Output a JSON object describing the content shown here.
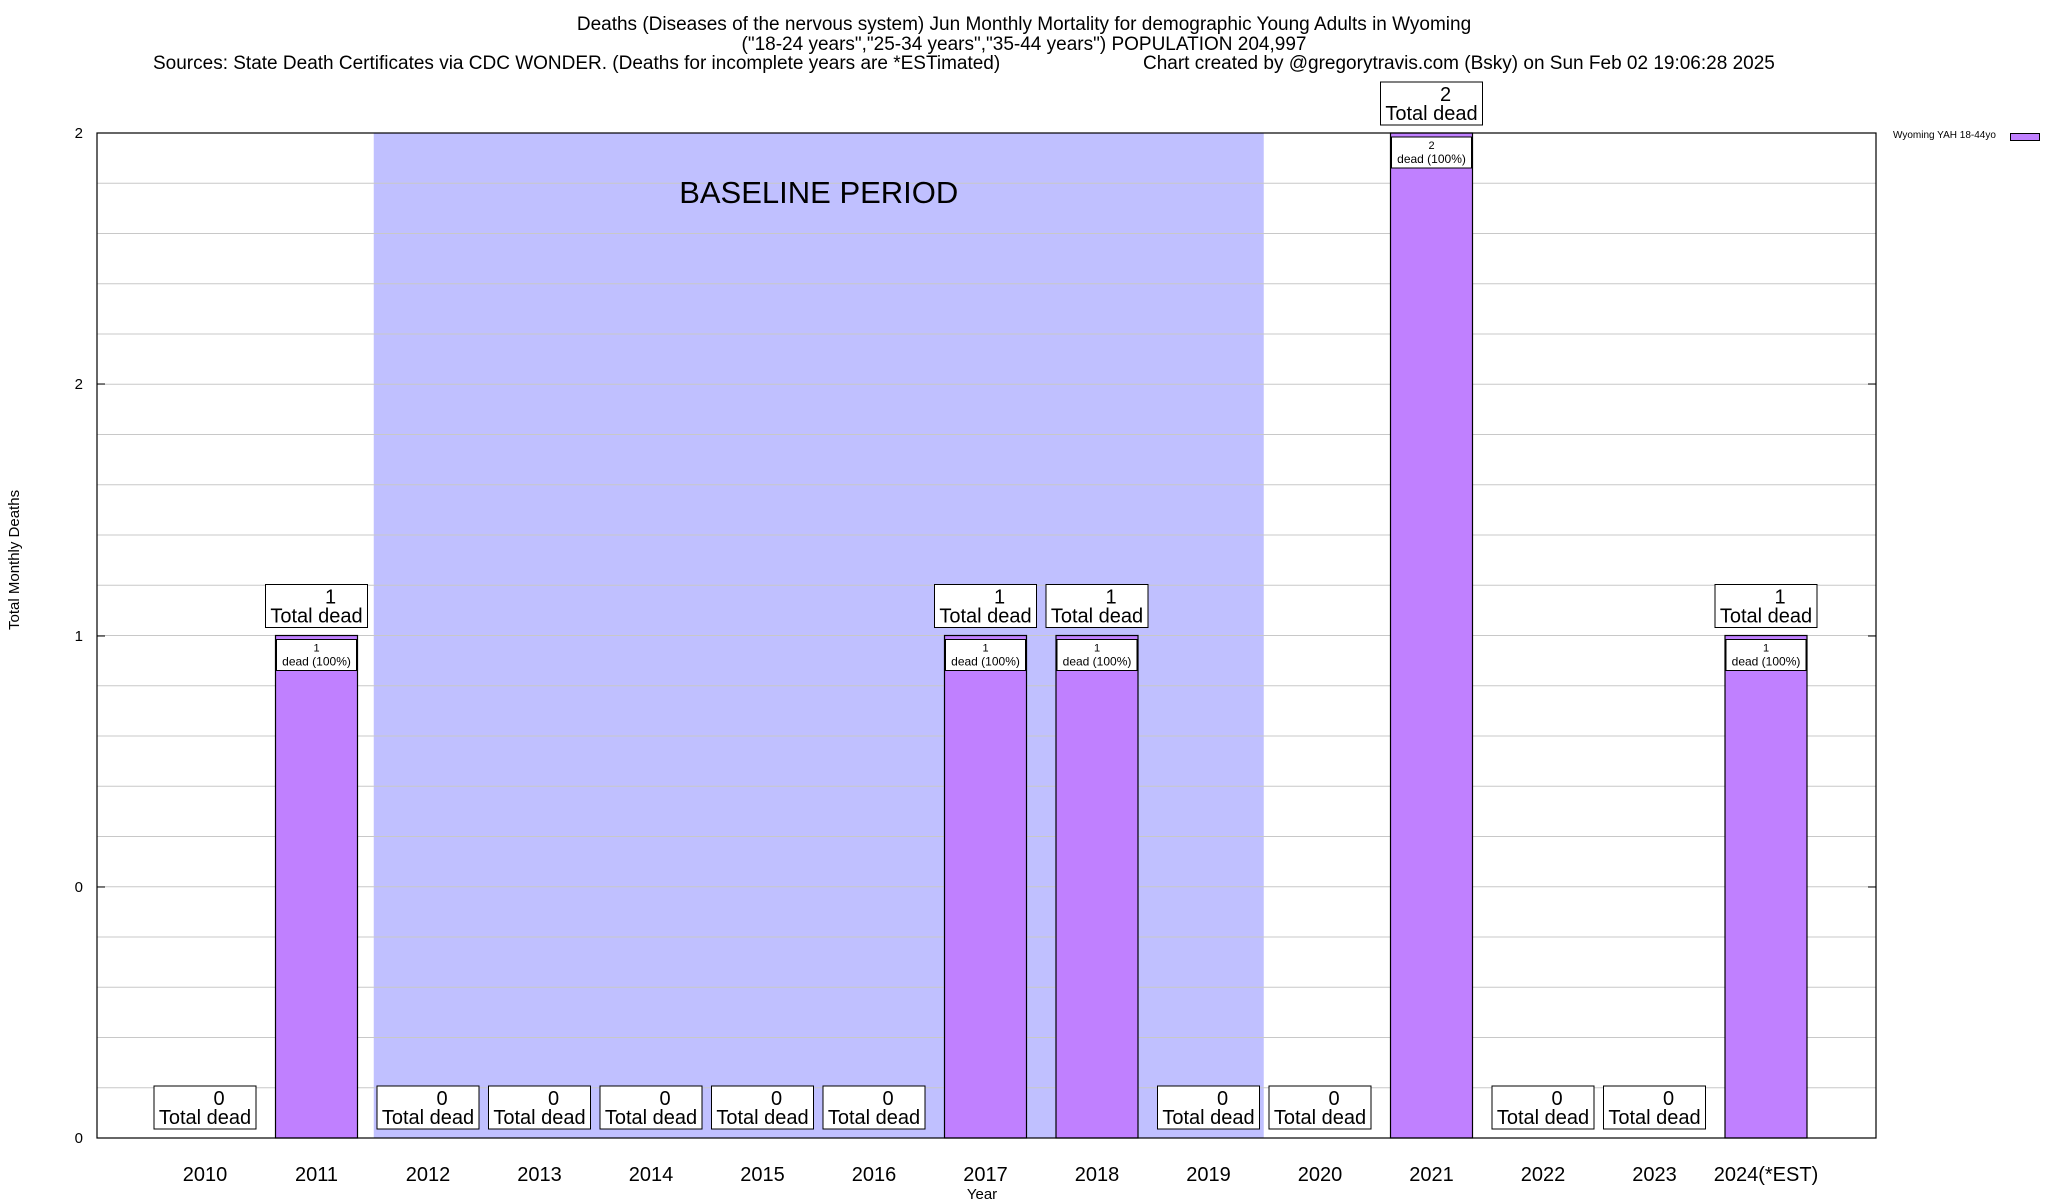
{
  "header": {
    "title_line1": "Deaths (Diseases of the nervous system) Jun Monthly Mortality for demographic Young Adults in Wyoming",
    "title_line2": "(\"18-24 years\",\"25-34 years\",\"35-44 years\") POPULATION 204,997",
    "sources": "Sources: State Death Certificates via CDC WONDER. (Deaths for incomplete years are *ESTimated)",
    "credit": "Chart created by @gregorytravis.com (Bsky) on Sun Feb 02 19:06:28 2025"
  },
  "legend": {
    "label": "Wyoming YAH 18-44yo",
    "color": "#c080ff"
  },
  "chart_data": {
    "type": "bar",
    "xlabel": "Year",
    "ylabel": "Total Monthly Deaths",
    "ylim": [
      0,
      2
    ],
    "y_tick_labels": [
      "0",
      "0",
      "1",
      "2",
      "2"
    ],
    "grid": true,
    "legend_position": "top-right",
    "baseline_label": "BASELINE PERIOD",
    "baseline_range": [
      "2012",
      "2019"
    ],
    "baseline_color": "#c0c0ff",
    "bar_color": "#c080ff",
    "total_label_suffix": "Total dead",
    "inner_label_suffix": "dead (100%)",
    "categories": [
      "2010",
      "2011",
      "2012",
      "2013",
      "2014",
      "2015",
      "2016",
      "2017",
      "2018",
      "2019",
      "2020",
      "2021",
      "2022",
      "2023",
      "2024(*EST)"
    ],
    "series": [
      {
        "name": "Wyoming YAH 18-44yo",
        "values": [
          0,
          1,
          0,
          0,
          0,
          0,
          0,
          1,
          1,
          0,
          0,
          2,
          0,
          0,
          1
        ]
      }
    ]
  }
}
